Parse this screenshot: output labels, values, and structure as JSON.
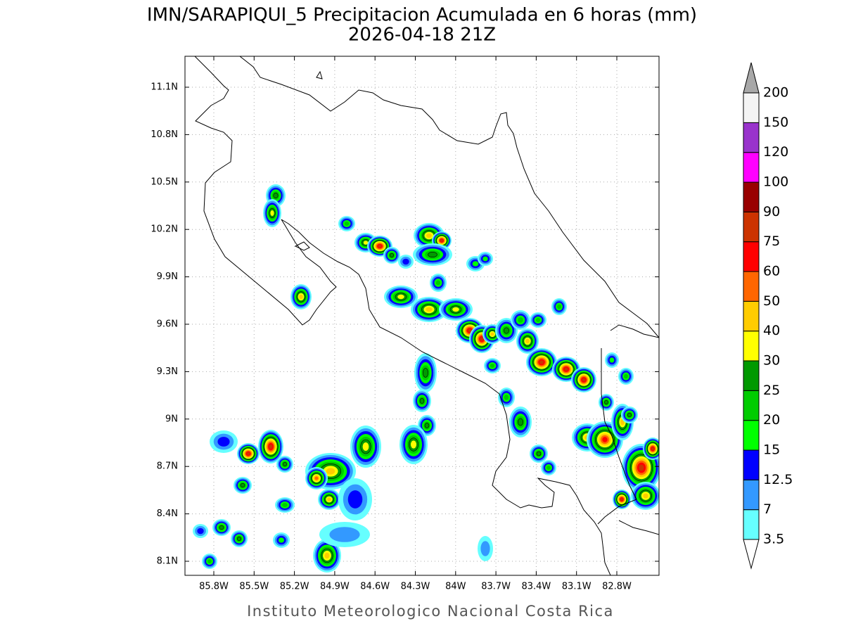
{
  "header": {
    "title": "IMN/SARAPIQUI_5 Precipitacion Acumulada en 6 horas (mm)",
    "subtitle": "2026-04-18 21Z"
  },
  "map": {
    "lat_labels": [
      "11.1N",
      "10.8N",
      "10.5N",
      "10.2N",
      "9.9N",
      "9.6N",
      "9.3N",
      "9N",
      "8.7N",
      "8.4N",
      "8.1N"
    ],
    "lon_labels": [
      "85.8W",
      "85.5W",
      "85.2W",
      "84.9W",
      "84.6W",
      "84.3W",
      "84W",
      "83.7W",
      "83.4W",
      "83.1W",
      "82.8W"
    ]
  },
  "colorbar": {
    "levels": [
      3.5,
      7,
      12.5,
      15,
      20,
      25,
      30,
      40,
      50,
      60,
      75,
      90,
      100,
      120,
      150,
      200
    ],
    "colors": [
      "#ffffff",
      "#66ffff",
      "#3399ff",
      "#0000ff",
      "#00ff00",
      "#00cc00",
      "#009900",
      "#ffff00",
      "#ffcc00",
      "#ff6600",
      "#ff0000",
      "#cc3300",
      "#990000",
      "#ff00ff",
      "#9933cc",
      "#f4f4f4",
      "#a8a8a8"
    ]
  },
  "footer": "Instituto Meteorologico Nacional Costa Rica"
}
